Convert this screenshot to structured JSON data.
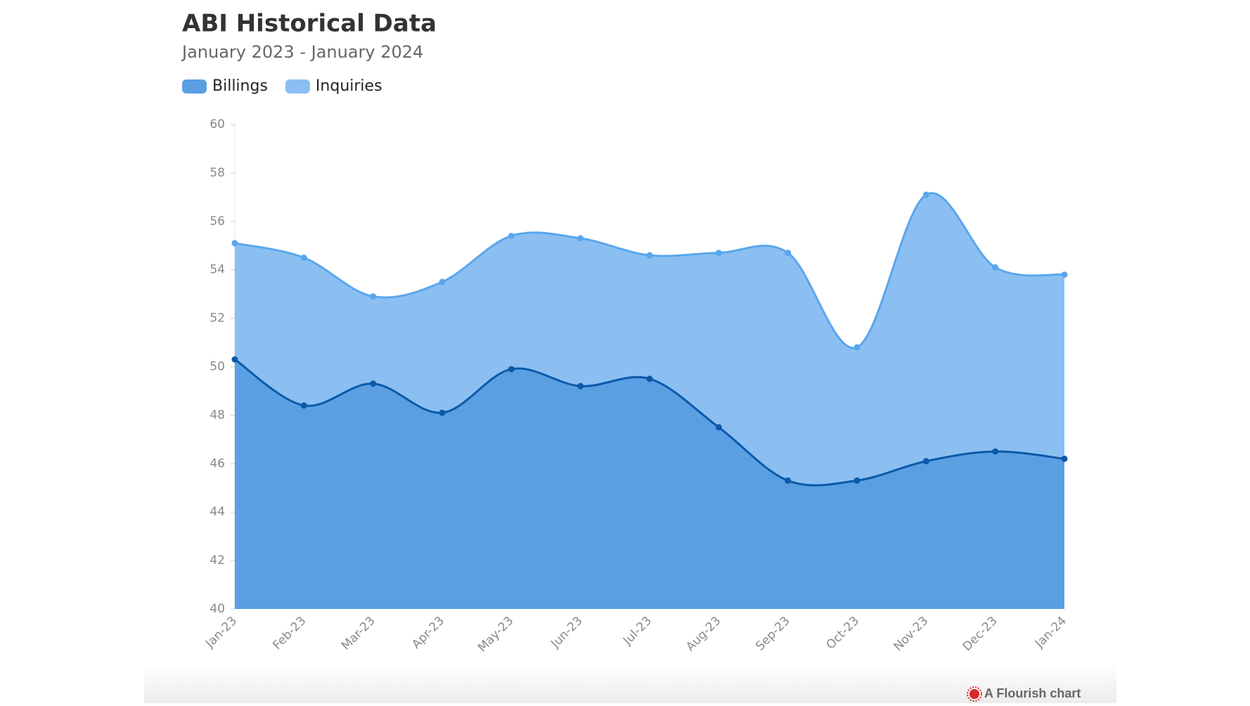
{
  "chart_data": {
    "type": "area",
    "title": "ABI Historical Data",
    "subtitle": "January 2023 - January 2024",
    "categories": [
      "Jan-23",
      "Feb-23",
      "Mar-23",
      "Apr-23",
      "May-23",
      "Jun-23",
      "Jul-23",
      "Aug-23",
      "Sep-23",
      "Oct-23",
      "Nov-23",
      "Dec-23",
      "Jan-24"
    ],
    "series": [
      {
        "name": "Billings",
        "color": "#0b5aa8",
        "fill": "#5b9fe3",
        "values": [
          50.3,
          48.4,
          49.3,
          48.1,
          49.9,
          49.2,
          49.5,
          47.5,
          45.3,
          45.3,
          46.1,
          46.5,
          46.2
        ]
      },
      {
        "name": "Inquiries",
        "color": "#5aa6ec",
        "fill": "#8bbff2",
        "values": [
          55.1,
          54.5,
          52.9,
          53.5,
          55.4,
          55.3,
          54.6,
          54.7,
          54.7,
          50.8,
          57.1,
          54.1,
          53.8
        ]
      }
    ],
    "ylim": [
      40,
      60
    ],
    "yticks": [
      40,
      42,
      44,
      46,
      48,
      50,
      52,
      54,
      56,
      58,
      60
    ],
    "footer": "A Flourish chart"
  }
}
